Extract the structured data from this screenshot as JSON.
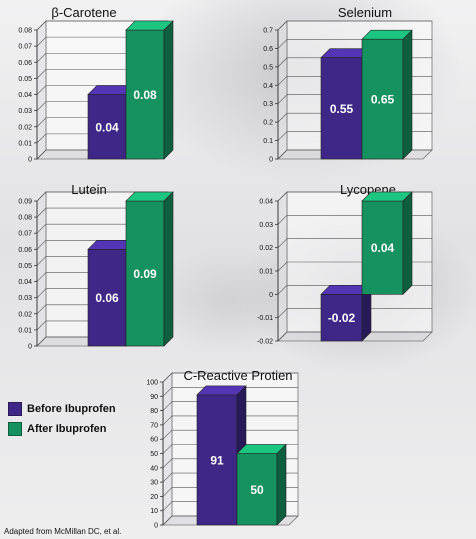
{
  "colors": {
    "before": "#3e2787",
    "after": "#15925f"
  },
  "legend": {
    "before_label": "Before Ibuprofen",
    "after_label": "After Ibuprofen"
  },
  "footnote": "Adapted from McMillan DC, et al.",
  "chart_data": [
    {
      "type": "bar",
      "title": "β-Carotene",
      "categories": [
        "Before Ibuprofen",
        "After Ibuprofen"
      ],
      "values": [
        0.04,
        0.08
      ],
      "value_labels": [
        "0.04",
        "0.08"
      ],
      "ylim": [
        0,
        0.08
      ],
      "yticks": [
        "0",
        "0.01",
        "0.02",
        "0.03",
        "0.04",
        "0.05",
        "0.06",
        "0.07",
        "0.08"
      ],
      "grid": true
    },
    {
      "type": "bar",
      "title": "Selenium",
      "categories": [
        "Before Ibuprofen",
        "After Ibuprofen"
      ],
      "values": [
        0.55,
        0.65
      ],
      "value_labels": [
        "0.55",
        "0.65"
      ],
      "ylim": [
        0,
        0.7
      ],
      "yticks": [
        "0",
        "0.1",
        "0.2",
        "0.3",
        "0.4",
        "0.5",
        "0.6",
        "0.7"
      ],
      "grid": true
    },
    {
      "type": "bar",
      "title": "Lutein",
      "categories": [
        "Before Ibuprofen",
        "After Ibuprofen"
      ],
      "values": [
        0.06,
        0.09
      ],
      "value_labels": [
        "0.06",
        "0.09"
      ],
      "ylim": [
        0,
        0.09
      ],
      "yticks": [
        "0",
        "0.01",
        "0.02",
        "0.03",
        "0.04",
        "0.05",
        "0.06",
        "0.07",
        "0.08",
        "0.09"
      ],
      "grid": true
    },
    {
      "type": "bar",
      "title": "Lycopene",
      "categories": [
        "Before Ibuprofen",
        "After Ibuprofen"
      ],
      "values": [
        -0.02,
        0.04
      ],
      "value_labels": [
        "-0.02",
        "0.04"
      ],
      "ylim": [
        -0.02,
        0.04
      ],
      "yticks": [
        "-0.02",
        "-0.01",
        "0",
        "0.01",
        "0.02",
        "0.03",
        "0.04"
      ],
      "grid": true
    },
    {
      "type": "bar",
      "title": "C-Reactive Protien",
      "categories": [
        "Before Ibuprofen",
        "After Ibuprofen"
      ],
      "values": [
        91,
        50
      ],
      "value_labels": [
        "91",
        "50"
      ],
      "ylim": [
        0,
        100
      ],
      "yticks": [
        "0",
        "10",
        "20",
        "30",
        "40",
        "50",
        "60",
        "70",
        "80",
        "90",
        "100"
      ],
      "grid": true
    }
  ]
}
